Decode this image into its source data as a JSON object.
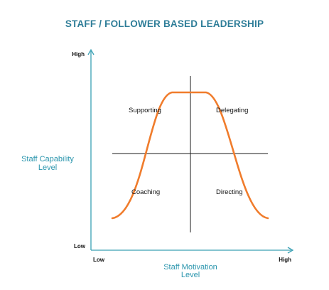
{
  "title": "STAFF / FOLLOWER BASED LEADERSHIP",
  "y_axis": {
    "title_lines": [
      "Staff Capability",
      "Level"
    ],
    "high_label": "High",
    "low_label": "Low"
  },
  "x_axis": {
    "title_lines": [
      "Staff Motivation",
      "Level"
    ],
    "low_label": "Low",
    "high_label": "High"
  },
  "quadrants": {
    "top_left": "Supporting",
    "top_right": "Delegating",
    "bottom_left": "Coaching",
    "bottom_right": "Directing"
  },
  "colors": {
    "title": "#2e7d98",
    "axis": "#3aa0b4",
    "axis_title": "#2a95ad",
    "curve": "#f07c2c",
    "crosshair": "#1a1a1a",
    "text": "#111111"
  }
}
